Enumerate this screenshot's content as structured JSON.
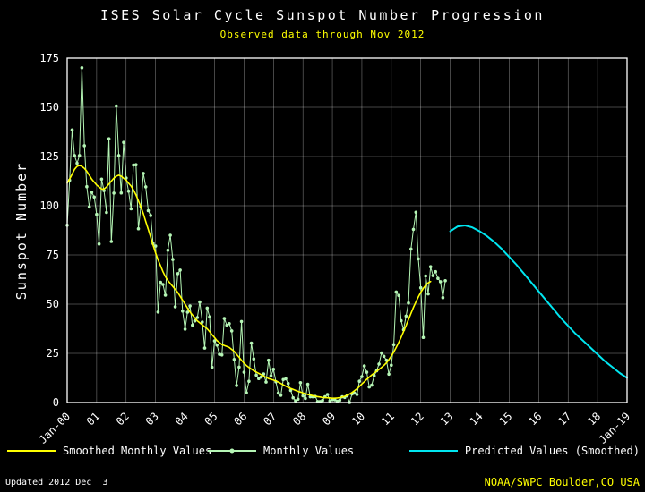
{
  "footer": {
    "updated": "Updated 2012 Dec  3",
    "credit": "NOAA/SWPC Boulder,CO USA"
  },
  "chart_data": {
    "type": "line",
    "title": "ISES Solar Cycle Sunspot Number Progression",
    "subtitle": "Observed data through Nov 2012",
    "ylabel": "Sunspot Number",
    "x_range": [
      2000,
      2019
    ],
    "y_range": [
      0,
      175
    ],
    "y_ticks": [
      0,
      25,
      50,
      75,
      100,
      125,
      150,
      175
    ],
    "x_tick_labels": [
      "Jan-00",
      "01",
      "02",
      "03",
      "04",
      "05",
      "06",
      "07",
      "08",
      "09",
      "10",
      "11",
      "12",
      "13",
      "14",
      "15",
      "16",
      "17",
      "18",
      "Jan-19"
    ],
    "grid": true,
    "legend_position": "bottom",
    "colors": {
      "background": "#000000",
      "text": "#ffffff",
      "accent": "#ffff00",
      "grid": "#ffffff"
    },
    "series": [
      {
        "name": "Smoothed Monthly Values",
        "color": "#ffff00",
        "width": 1.6,
        "z": 2,
        "start": 2000.0,
        "step_months": 1,
        "values": [
          111.5,
          113.5,
          116.0,
          118.5,
          120.0,
          120.5,
          120.0,
          119.0,
          117.5,
          115.5,
          113.5,
          112.0,
          110.5,
          109.5,
          108.5,
          108.5,
          109.5,
          111.0,
          112.5,
          114.0,
          115.0,
          115.5,
          115.0,
          114.0,
          113.0,
          111.5,
          110.0,
          108.0,
          105.5,
          102.5,
          99.5,
          96.0,
          92.0,
          88.0,
          84.0,
          80.0,
          76.0,
          72.5,
          69.5,
          66.5,
          64.0,
          62.0,
          60.5,
          59.0,
          57.5,
          56.0,
          54.0,
          52.0,
          50.0,
          48.0,
          46.0,
          44.5,
          43.0,
          41.5,
          40.5,
          39.5,
          38.5,
          37.5,
          36.0,
          34.5,
          33.0,
          31.5,
          30.5,
          29.5,
          29.0,
          28.5,
          28.0,
          27.0,
          26.0,
          24.5,
          23.0,
          21.5,
          20.0,
          18.8,
          17.8,
          17.0,
          16.2,
          15.5,
          14.8,
          14.2,
          13.5,
          12.8,
          12.2,
          11.8,
          11.4,
          11.0,
          10.4,
          9.7,
          9.0,
          8.3,
          7.7,
          7.2,
          6.7,
          6.2,
          5.7,
          5.3,
          4.9,
          4.5,
          4.1,
          3.8,
          3.5,
          3.2,
          3.0,
          2.8,
          2.6,
          2.5,
          2.4,
          2.3,
          2.2,
          2.2,
          2.3,
          2.5,
          2.8,
          3.2,
          3.7,
          4.3,
          5.1,
          6.0,
          7.0,
          8.2,
          9.4,
          10.6,
          11.8,
          12.9,
          14.0,
          15.0,
          15.9,
          16.8,
          17.8,
          18.9,
          20.2,
          21.8,
          23.6,
          25.7,
          28.0,
          30.5,
          33.2,
          36.1,
          39.1,
          42.2,
          45.3,
          48.3,
          51.1,
          53.7,
          56.0,
          58.0,
          59.6,
          60.8,
          61.5
        ]
      },
      {
        "name": "Monthly Values",
        "color": "#b5f5b5",
        "width": 1,
        "markers": true,
        "z": 1,
        "start": 2000.0,
        "step_months": 1,
        "values": [
          90.1,
          112.9,
          138.5,
          125.5,
          121.6,
          125.5,
          170.1,
          130.5,
          109.7,
          99.4,
          106.8,
          104.4,
          95.6,
          80.6,
          113.5,
          107.7,
          96.6,
          134.0,
          81.8,
          106.4,
          150.7,
          125.5,
          106.5,
          132.2,
          114.1,
          107.4,
          98.4,
          120.7,
          120.8,
          88.3,
          99.6,
          116.4,
          109.6,
          97.5,
          95.0,
          80.8,
          79.5,
          46.0,
          61.1,
          60.0,
          54.6,
          77.4,
          85.0,
          72.7,
          48.7,
          65.5,
          67.3,
          46.5,
          37.3,
          45.9,
          49.1,
          39.3,
          41.5,
          43.2,
          51.1,
          40.9,
          27.7,
          48.0,
          43.5,
          17.9,
          31.3,
          29.2,
          24.5,
          24.2,
          42.7,
          39.3,
          40.1,
          36.4,
          21.9,
          8.7,
          18.0,
          41.2,
          15.4,
          5.0,
          10.8,
          30.2,
          22.2,
          13.9,
          12.2,
          12.9,
          14.5,
          10.4,
          21.5,
          13.6,
          16.9,
          10.6,
          4.8,
          3.7,
          11.7,
          12.1,
          9.7,
          6.2,
          2.4,
          0.9,
          1.7,
          10.1,
          3.4,
          2.1,
          9.3,
          2.9,
          2.9,
          3.1,
          0.5,
          0.5,
          1.1,
          2.9,
          4.1,
          0.8,
          1.5,
          1.4,
          0.7,
          1.2,
          2.9,
          2.6,
          3.5,
          0.0,
          4.3,
          4.8,
          4.1,
          10.8,
          13.2,
          18.6,
          15.4,
          7.9,
          8.8,
          13.6,
          16.1,
          19.6,
          25.2,
          23.5,
          21.5,
          14.4,
          19.0,
          29.4,
          56.2,
          54.4,
          41.6,
          37.0,
          43.9,
          50.6,
          78.0,
          88.0,
          96.7,
          73.0,
          58.3,
          33.1,
          64.3,
          55.2,
          69.0,
          64.5,
          66.5,
          63.1,
          61.4,
          53.3,
          61.9
        ]
      },
      {
        "name": "Predicted Values (Smoothed)",
        "color": "#00e6f0",
        "width": 2,
        "z": 3,
        "x": [
          2013.0,
          2013.25,
          2013.5,
          2013.75,
          2014.0,
          2014.25,
          2014.5,
          2014.75,
          2015.0,
          2015.25,
          2015.5,
          2015.75,
          2016.0,
          2016.25,
          2016.5,
          2016.75,
          2017.0,
          2017.25,
          2017.5,
          2017.75,
          2018.0,
          2018.25,
          2018.5,
          2018.75,
          2019.0
        ],
        "values": [
          87.0,
          89.5,
          90.0,
          89.0,
          87.0,
          84.5,
          81.5,
          78.0,
          74.0,
          70.0,
          65.5,
          61.0,
          56.5,
          52.0,
          47.5,
          43.0,
          39.0,
          35.0,
          31.5,
          28.0,
          24.5,
          21.0,
          18.0,
          15.0,
          12.5
        ]
      }
    ]
  }
}
